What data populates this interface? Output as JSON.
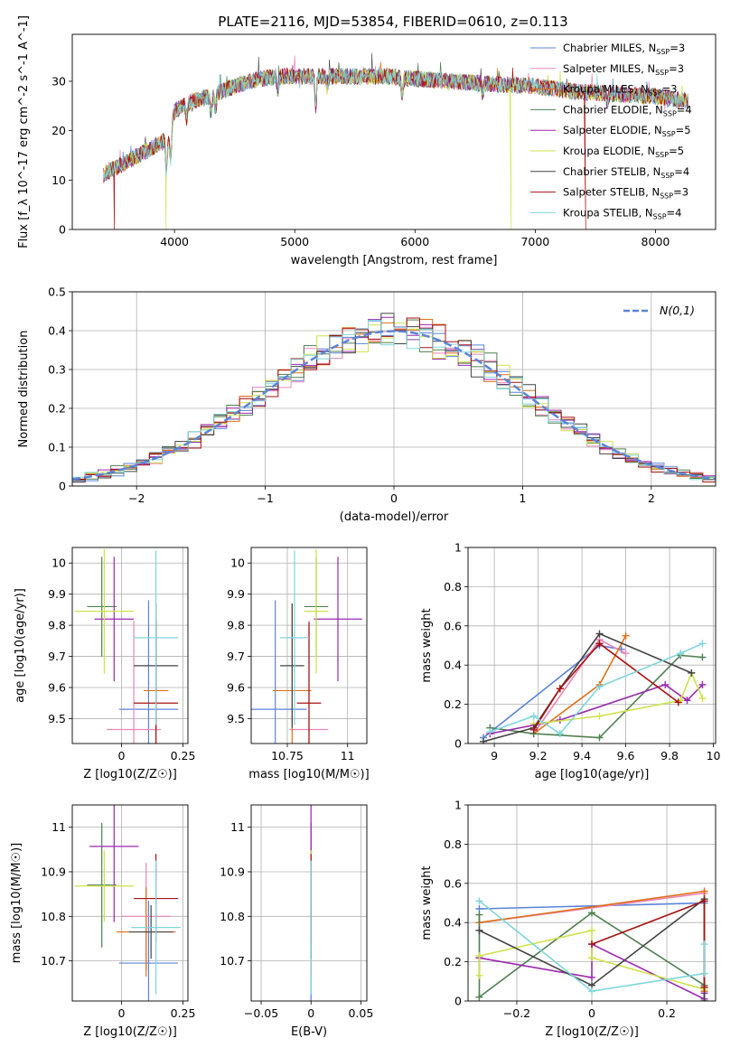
{
  "figure": {
    "title": "PLATE=2116, MJD=53854, FIBERID=0610, z=0.113"
  },
  "colors": {
    "Chabrier MILES": "#5b84d8",
    "Salpeter MILES": "#e887b8",
    "Kroupa MILES": "#e0701a",
    "Chabrier ELODIE": "#4f8050",
    "Salpeter ELODIE": "#9b27b0",
    "Kroupa ELODIE": "#cfe24a",
    "Chabrier STELIB": "#444444",
    "Salpeter STELIB": "#a81010",
    "Kroupa STELIB": "#7fd6dc",
    "gauss": "#5b84d8",
    "grid": "#b0b0b0"
  },
  "legend_labels": [
    "Chabrier MILES, N_SSP=3",
    "Salpeter MILES, N_SSP=3",
    "Kroupa MILES, N_SSP=3",
    "Chabrier ELODIE, N_SSP=4",
    "Salpeter ELODIE, N_SSP=5",
    "Kroupa ELODIE, N_SSP=5",
    "Chabrier STELIB, N_SSP=4",
    "Salpeter STELIB, N_SSP=3",
    "Kroupa STELIB, N_SSP=4"
  ],
  "chart_data": [
    {
      "id": "spectrum",
      "type": "line",
      "xlabel": "wavelength [Angstrom, rest frame]",
      "ylabel": "Flux [f_λ 10^-17 erg cm^-2 s^-1 A^-1]",
      "xlim": [
        3150,
        8500
      ],
      "ylim": [
        0,
        39.5
      ],
      "xticks": [
        4000,
        5000,
        6000,
        7000,
        8000
      ],
      "yticks": [
        0,
        10,
        20,
        30
      ],
      "legend_position": "upper right",
      "grid": false,
      "continuum": [
        [
          3400,
          11
        ],
        [
          3550,
          13
        ],
        [
          3700,
          15
        ],
        [
          3850,
          17
        ],
        [
          3950,
          18.5
        ],
        [
          4000,
          24
        ],
        [
          4150,
          26
        ],
        [
          4300,
          27
        ],
        [
          4500,
          29
        ],
        [
          4700,
          30.5
        ],
        [
          4900,
          31
        ],
        [
          5100,
          31
        ],
        [
          5300,
          31
        ],
        [
          5500,
          31
        ],
        [
          5800,
          31
        ],
        [
          6000,
          30.5
        ],
        [
          6300,
          30
        ],
        [
          6600,
          29.5
        ],
        [
          7000,
          29
        ],
        [
          7300,
          28
        ],
        [
          7600,
          27.5
        ],
        [
          8000,
          27
        ],
        [
          8270,
          26
        ]
      ],
      "dips": [
        {
          "x": 3500,
          "to": 0,
          "series": "Salpeter STELIB"
        },
        {
          "x": 3930,
          "to": 0,
          "series": "Kroupa ELODIE"
        },
        {
          "x": 6800,
          "to": 0,
          "series": "Kroupa ELODIE"
        },
        {
          "x": 7420,
          "to": 0,
          "series": "Salpeter STELIB"
        }
      ]
    },
    {
      "id": "residuals",
      "type": "histogram",
      "xlabel": "(data-model)/error",
      "ylabel": "Normed distribution",
      "xlim": [
        -2.5,
        2.5
      ],
      "ylim": [
        0,
        0.5
      ],
      "xticks": [
        -2,
        -1,
        0,
        1,
        2
      ],
      "yticks": [
        0.0,
        0.1,
        0.2,
        0.3,
        0.4,
        0.5
      ],
      "gauss_label": "N(0,1)",
      "legend_position": "upper right",
      "grid": true,
      "bin_width": 0.1
    },
    {
      "id": "Z_vs_age",
      "type": "errorbar",
      "xlabel": "Z [log10(Z/Z☉)]",
      "ylabel": "age  [log10(age/yr)]",
      "xlim": [
        -0.2,
        0.27
      ],
      "ylim": [
        9.42,
        10.05
      ],
      "xticks": [
        0.0,
        0.25
      ],
      "yticks": [
        9.5,
        9.6,
        9.7,
        9.8,
        9.9,
        10.0
      ],
      "grid": true,
      "points": [
        {
          "series": "Chabrier MILES",
          "x": 0.11,
          "xerr": 0.12,
          "y": 9.53,
          "yerr": 0.35
        },
        {
          "series": "Salpeter MILES",
          "x": 0.05,
          "xerr": 0.11,
          "y": 9.465,
          "yerr": 0.35
        },
        {
          "series": "Kroupa MILES",
          "x": 0.14,
          "xerr": 0.05,
          "y": 9.59,
          "yerr": 0.28
        },
        {
          "series": "Chabrier ELODIE",
          "x": -0.08,
          "xerr": 0.06,
          "y": 9.86,
          "yerr": 0.16
        },
        {
          "series": "Salpeter ELODIE",
          "x": -0.03,
          "xerr": 0.08,
          "y": 9.82,
          "yerr": 0.2
        },
        {
          "series": "Kroupa ELODIE",
          "x": -0.07,
          "xerr": 0.12,
          "y": 9.845,
          "yerr": 0.2
        },
        {
          "series": "Chabrier STELIB",
          "x": 0.14,
          "xerr": 0.09,
          "y": 9.67,
          "yerr": 0.2
        },
        {
          "series": "Salpeter STELIB",
          "x": 0.14,
          "xerr": 0.09,
          "y": 9.55,
          "yerr": 0.26
        },
        {
          "series": "Kroupa STELIB",
          "x": 0.14,
          "xerr": 0.09,
          "y": 9.76,
          "yerr": 0.28
        }
      ]
    },
    {
      "id": "mass_vs_age",
      "type": "errorbar",
      "xlabel": "mass [log10(M/M☉)]",
      "ylabel": "",
      "xlim": [
        10.6,
        11.08
      ],
      "ylim": [
        9.42,
        10.05
      ],
      "xticks": [
        10.75,
        11.0
      ],
      "yticks": [
        9.5,
        9.6,
        9.7,
        9.8,
        9.9,
        10.0
      ],
      "grid": true,
      "points": [
        {
          "series": "Chabrier MILES",
          "x": 10.7,
          "xerr": 0.13,
          "y": 9.53,
          "yerr": 0.35
        },
        {
          "series": "Salpeter MILES",
          "x": 10.84,
          "xerr": 0.08,
          "y": 9.465,
          "yerr": 0.35
        },
        {
          "series": "Kroupa MILES",
          "x": 10.77,
          "xerr": 0.08,
          "y": 9.59,
          "yerr": 0.28
        },
        {
          "series": "Chabrier ELODIE",
          "x": 10.87,
          "xerr": 0.05,
          "y": 9.86,
          "yerr": 0.16
        },
        {
          "series": "Salpeter ELODIE",
          "x": 10.96,
          "xerr": 0.1,
          "y": 9.82,
          "yerr": 0.2
        },
        {
          "series": "Kroupa ELODIE",
          "x": 10.87,
          "xerr": 0.05,
          "y": 9.845,
          "yerr": 0.2
        },
        {
          "series": "Chabrier STELIB",
          "x": 10.77,
          "xerr": 0.05,
          "y": 9.67,
          "yerr": 0.2
        },
        {
          "series": "Salpeter STELIB",
          "x": 10.84,
          "xerr": 0.05,
          "y": 9.55,
          "yerr": 0.26
        },
        {
          "series": "Kroupa STELIB",
          "x": 10.78,
          "xerr": 0.06,
          "y": 9.76,
          "yerr": 0.28
        }
      ]
    },
    {
      "id": "age_weights",
      "type": "line",
      "xlabel": "age  [log10(age/yr)]",
      "ylabel": "mass weight",
      "xlim": [
        8.88,
        10.01
      ],
      "ylim": [
        0,
        1
      ],
      "xticks": [
        9.0,
        9.2,
        9.4,
        9.6,
        9.8,
        10.0
      ],
      "yticks": [
        0.0,
        0.2,
        0.4,
        0.6,
        0.8,
        1.0
      ],
      "grid": true,
      "series": [
        {
          "name": "Chabrier MILES",
          "points": [
            [
              8.95,
              0.03
            ],
            [
              9.48,
              0.5
            ],
            [
              9.58,
              0.48
            ]
          ]
        },
        {
          "name": "Salpeter MILES",
          "points": [
            [
              9.18,
              0.05
            ],
            [
              9.48,
              0.53
            ],
            [
              9.6,
              0.46
            ]
          ]
        },
        {
          "name": "Kroupa MILES",
          "points": [
            [
              9.18,
              0.05
            ],
            [
              9.48,
              0.3
            ],
            [
              9.6,
              0.55
            ]
          ]
        },
        {
          "name": "Chabrier ELODIE",
          "points": [
            [
              8.98,
              0.08
            ],
            [
              9.18,
              0.05
            ],
            [
              9.48,
              0.03
            ],
            [
              9.85,
              0.45
            ],
            [
              9.95,
              0.44
            ]
          ]
        },
        {
          "name": "Salpeter ELODIE",
          "points": [
            [
              8.98,
              0.05
            ],
            [
              9.3,
              0.12
            ],
            [
              9.78,
              0.3
            ],
            [
              9.88,
              0.22
            ],
            [
              9.95,
              0.3
            ]
          ]
        },
        {
          "name": "Kroupa ELODIE",
          "points": [
            [
              9.18,
              0.1
            ],
            [
              9.48,
              0.14
            ],
            [
              9.85,
              0.22
            ],
            [
              9.9,
              0.36
            ],
            [
              9.95,
              0.23
            ]
          ]
        },
        {
          "name": "Chabrier STELIB",
          "points": [
            [
              8.95,
              0.01
            ],
            [
              9.18,
              0.08
            ],
            [
              9.3,
              0.28
            ],
            [
              9.48,
              0.56
            ],
            [
              9.9,
              0.36
            ]
          ]
        },
        {
          "name": "Salpeter STELIB",
          "points": [
            [
              9.18,
              0.07
            ],
            [
              9.3,
              0.28
            ],
            [
              9.48,
              0.51
            ],
            [
              9.84,
              0.21
            ]
          ]
        },
        {
          "name": "Kroupa STELIB",
          "points": [
            [
              8.98,
              0.06
            ],
            [
              9.18,
              0.14
            ],
            [
              9.3,
              0.05
            ],
            [
              9.48,
              0.29
            ],
            [
              9.85,
              0.46
            ],
            [
              9.95,
              0.51
            ]
          ]
        }
      ]
    },
    {
      "id": "Z_vs_mass",
      "type": "errorbar",
      "xlabel": "Z [log10(Z/Z☉)]",
      "ylabel": "mass [log10(M/M☉)]",
      "xlim": [
        -0.2,
        0.27
      ],
      "ylim": [
        10.61,
        11.05
      ],
      "xticks": [
        0.0,
        0.25
      ],
      "yticks": [
        10.7,
        10.8,
        10.9,
        11.0
      ],
      "grid": true,
      "points": [
        {
          "series": "Chabrier MILES",
          "x": 0.11,
          "xerr": 0.12,
          "y": 10.695,
          "yerr": 0.14
        },
        {
          "series": "Salpeter MILES",
          "x": 0.1,
          "xerr": 0.1,
          "y": 10.8,
          "yerr": 0.12
        },
        {
          "series": "Kroupa MILES",
          "x": 0.1,
          "xerr": 0.12,
          "y": 10.765,
          "yerr": 0.1
        },
        {
          "series": "Chabrier ELODIE",
          "x": -0.08,
          "xerr": 0.06,
          "y": 10.87,
          "yerr": 0.14
        },
        {
          "series": "Salpeter ELODIE",
          "x": -0.03,
          "xerr": 0.1,
          "y": 10.957,
          "yerr": 0.17
        },
        {
          "series": "Kroupa ELODIE",
          "x": -0.07,
          "xerr": 0.12,
          "y": 10.868,
          "yerr": 0.08
        },
        {
          "series": "Chabrier STELIB",
          "x": 0.12,
          "xerr": 0.09,
          "y": 10.765,
          "yerr": 0.06
        },
        {
          "series": "Salpeter STELIB",
          "x": 0.14,
          "xerr": 0.09,
          "y": 10.84,
          "yerr": 0.1
        },
        {
          "series": "Kroupa STELIB",
          "x": 0.14,
          "xerr": 0.1,
          "y": 10.775,
          "yerr": 0.15
        }
      ]
    },
    {
      "id": "EBV_vs_mass",
      "type": "errorbar",
      "xlabel": "E(B-V)",
      "ylabel": "",
      "xlim": [
        -0.06,
        0.056
      ],
      "ylim": [
        10.61,
        11.05
      ],
      "xticks": [
        -0.05,
        0.0,
        0.05
      ],
      "yticks": [
        10.7,
        10.8,
        10.9,
        11.0
      ],
      "grid": true,
      "points": [
        {
          "series": "Chabrier MILES",
          "x": 0,
          "xerr": 0,
          "y": 10.695,
          "yerr": 0.14
        },
        {
          "series": "Salpeter MILES",
          "x": 0,
          "xerr": 0,
          "y": 10.8,
          "yerr": 0.12
        },
        {
          "series": "Kroupa MILES",
          "x": 0,
          "xerr": 0,
          "y": 10.765,
          "yerr": 0.1
        },
        {
          "series": "Chabrier ELODIE",
          "x": 0,
          "xerr": 0,
          "y": 10.87,
          "yerr": 0.14
        },
        {
          "series": "Salpeter ELODIE",
          "x": 0,
          "xerr": 0,
          "y": 10.957,
          "yerr": 0.17
        },
        {
          "series": "Kroupa ELODIE",
          "x": 0,
          "xerr": 0,
          "y": 10.868,
          "yerr": 0.08
        },
        {
          "series": "Chabrier STELIB",
          "x": 0,
          "xerr": 0,
          "y": 10.765,
          "yerr": 0.06
        },
        {
          "series": "Salpeter STELIB",
          "x": 0,
          "xerr": 0,
          "y": 10.84,
          "yerr": 0.1
        },
        {
          "series": "Kroupa STELIB",
          "x": 0,
          "xerr": 0,
          "y": 10.775,
          "yerr": 0.15
        }
      ]
    },
    {
      "id": "Z_weights",
      "type": "line",
      "xlabel": "Z [log10(Z/Z☉)]",
      "ylabel": "mass weight",
      "xlim": [
        -0.33,
        0.33
      ],
      "ylim": [
        0,
        1
      ],
      "xticks": [
        -0.2,
        0.0,
        0.2
      ],
      "yticks": [
        0.0,
        0.2,
        0.4,
        0.6,
        0.8,
        1.0
      ],
      "grid": true,
      "series": [
        {
          "name": "Chabrier MILES",
          "points": [
            [
              -0.3,
              0.47
            ],
            [
              0.3,
              0.5
            ]
          ]
        },
        {
          "name": "Salpeter MILES",
          "points": [
            [
              -0.3,
              0.4
            ],
            [
              0.3,
              0.55
            ],
            [
              0.3,
              0.05
            ]
          ]
        },
        {
          "name": "Kroupa MILES",
          "points": [
            [
              -0.3,
              0.4
            ],
            [
              0.3,
              0.56
            ],
            [
              0.3,
              0.05
            ]
          ]
        },
        {
          "name": "Chabrier ELODIE",
          "points": [
            [
              -0.3,
              0.44
            ],
            [
              -0.3,
              0.02
            ],
            [
              0.0,
              0.45
            ],
            [
              0.3,
              0.08
            ]
          ]
        },
        {
          "name": "Salpeter ELODIE",
          "points": [
            [
              -0.3,
              0.22
            ],
            [
              0.0,
              0.12
            ],
            [
              0.0,
              0.29
            ],
            [
              0.3,
              0.01
            ],
            [
              0.3,
              0.04
            ]
          ]
        },
        {
          "name": "Kroupa ELODIE",
          "points": [
            [
              -0.3,
              0.13
            ],
            [
              -0.3,
              0.23
            ],
            [
              0.0,
              0.36
            ],
            [
              0.0,
              0.22
            ],
            [
              0.3,
              0.06
            ]
          ]
        },
        {
          "name": "Chabrier STELIB",
          "points": [
            [
              -0.3,
              0.36
            ],
            [
              0.0,
              0.08
            ],
            [
              0.3,
              0.52
            ],
            [
              0.3,
              0.0
            ]
          ]
        },
        {
          "name": "Salpeter STELIB",
          "points": [
            [
              0.0,
              0.29
            ],
            [
              0.3,
              0.51
            ],
            [
              0.3,
              0.07
            ]
          ]
        },
        {
          "name": "Kroupa STELIB",
          "points": [
            [
              -0.3,
              0.51
            ],
            [
              0.0,
              0.05
            ],
            [
              0.3,
              0.14
            ],
            [
              0.3,
              0.29
            ]
          ]
        }
      ]
    }
  ]
}
